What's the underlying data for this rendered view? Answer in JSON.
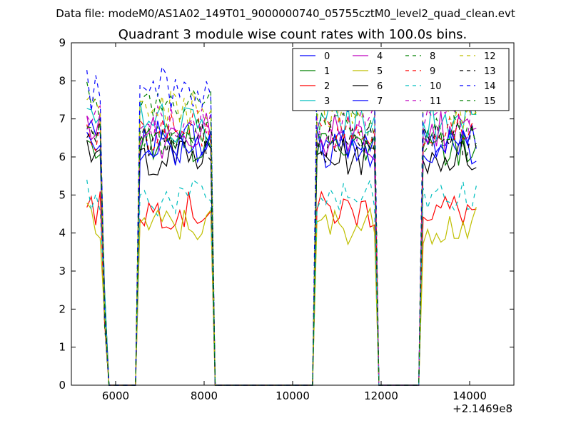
{
  "suptitle": "Data file: modeM0/AS1A02_149T01_9000000740_05755cztM0_level2_quad_clean.evt",
  "chart_data": {
    "type": "line",
    "title": "Quadrant 3 module wise count rates with 100.0s bins.",
    "xlabel": "",
    "ylabel": "",
    "x_offset_label": "+2.1469e8",
    "xlim": [
      5000,
      15000
    ],
    "ylim": [
      0,
      9
    ],
    "xticks": [
      6000,
      8000,
      10000,
      12000,
      14000
    ],
    "yticks": [
      0,
      1,
      2,
      3,
      4,
      5,
      6,
      7,
      8,
      9
    ],
    "grid": false,
    "legend_position": "top-right",
    "segments": [
      [
        5350,
        5650
      ],
      [
        6550,
        8150
      ],
      [
        10550,
        11850
      ],
      [
        12950,
        14150
      ]
    ],
    "segment_edges": [
      [
        5750,
        5850
      ],
      [
        6450,
        6550
      ],
      [
        8150,
        8350
      ],
      [
        10450,
        10550
      ],
      [
        11850,
        11950
      ],
      [
        12850,
        12950
      ],
      [
        14150,
        14150
      ]
    ],
    "series": [
      {
        "name": "0",
        "color": "#0000ff",
        "style": "solid",
        "level": 6.4
      },
      {
        "name": "1",
        "color": "#008000",
        "style": "solid",
        "level": 6.3
      },
      {
        "name": "2",
        "color": "#ff0000",
        "style": "solid",
        "level": 4.6
      },
      {
        "name": "3",
        "color": "#00bfbf",
        "style": "solid",
        "level": 6.9
      },
      {
        "name": "4",
        "color": "#bf00bf",
        "style": "solid",
        "level": 6.6
      },
      {
        "name": "5",
        "color": "#bfbf00",
        "style": "solid",
        "level": 4.2
      },
      {
        "name": "6",
        "color": "#000000",
        "style": "solid",
        "level": 6.0
      },
      {
        "name": "7",
        "color": "#0000ff",
        "style": "solid",
        "level": 6.3
      },
      {
        "name": "8",
        "color": "#008000",
        "style": "dashed",
        "level": 7.5
      },
      {
        "name": "9",
        "color": "#ff0000",
        "style": "dashed",
        "level": 6.7
      },
      {
        "name": "10",
        "color": "#00bfbf",
        "style": "dashed",
        "level": 4.9
      },
      {
        "name": "11",
        "color": "#bf00bf",
        "style": "dashed",
        "level": 6.9
      },
      {
        "name": "12",
        "color": "#bfbf00",
        "style": "dashed",
        "level": 7.3
      },
      {
        "name": "13",
        "color": "#000000",
        "style": "dashed",
        "level": 6.5
      },
      {
        "name": "14",
        "color": "#0000ff",
        "style": "dashed",
        "level": 7.7
      },
      {
        "name": "15",
        "color": "#008000",
        "style": "dashed",
        "level": 6.6
      }
    ]
  }
}
